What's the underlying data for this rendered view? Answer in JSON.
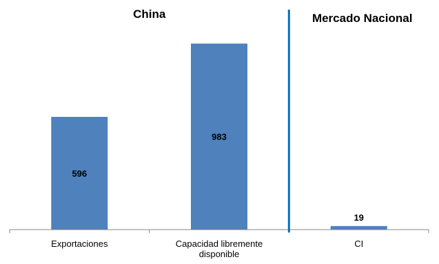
{
  "chart_data": {
    "type": "bar",
    "categories": [
      "Exportaciones",
      "Capacidad librementedisponible",
      "CI"
    ],
    "category_lines": [
      [
        "Exportaciones"
      ],
      [
        "Capacidad libremente",
        "disponible"
      ],
      [
        "CI"
      ]
    ],
    "values": [
      596,
      983,
      19
    ],
    "value_labels": [
      "596",
      "983",
      "19"
    ],
    "groups": [
      {
        "title": "China",
        "categories": [
          "Exportaciones",
          "Capacidad librementedisponible"
        ]
      },
      {
        "title": "Mercado Nacional",
        "categories": [
          "CI"
        ]
      }
    ],
    "ylim": [
      0,
      1050
    ],
    "grid": false,
    "colors": {
      "bar": "#4F81BD",
      "divider": "#0070C0",
      "axis": "#868686"
    }
  }
}
